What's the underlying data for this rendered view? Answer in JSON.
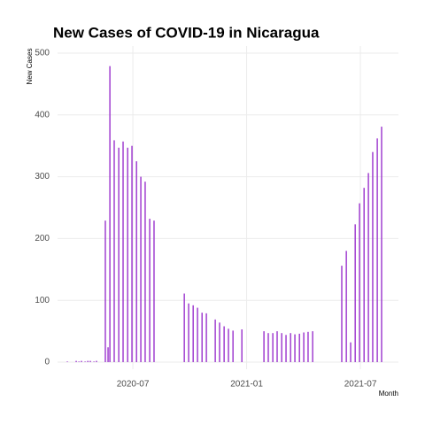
{
  "chart_data": {
    "type": "bar",
    "title": "New Cases of COVID-19 in Nicaragua",
    "x_label": "Month",
    "y_label": "New Cases",
    "x": [
      2020.212,
      2020.251,
      2020.263,
      2020.274,
      2020.29,
      2020.302,
      2020.313,
      2020.329,
      2020.34,
      2020.379,
      2020.391,
      2020.399,
      2020.418,
      2020.438,
      2020.457,
      2020.477,
      2020.496,
      2020.516,
      2020.535,
      2020.554,
      2020.574,
      2020.593,
      2020.726,
      2020.745,
      2020.765,
      2020.784,
      2020.804,
      2020.823,
      2020.862,
      2020.881,
      2020.901,
      2020.92,
      2020.94,
      2020.979,
      2021.076,
      2021.095,
      2021.115,
      2021.134,
      2021.154,
      2021.173,
      2021.193,
      2021.212,
      2021.232,
      2021.251,
      2021.27,
      2021.29,
      2021.418,
      2021.438,
      2021.457,
      2021.477,
      2021.496,
      2021.516,
      2021.535,
      2021.554,
      2021.574,
      2021.593
    ],
    "values": [
      1,
      2,
      1,
      2,
      1,
      2,
      2,
      1,
      2,
      229,
      24,
      479,
      359,
      347,
      357,
      347,
      350,
      325,
      300,
      292,
      232,
      229,
      111,
      95,
      92,
      88,
      80,
      79,
      69,
      64,
      58,
      54,
      51,
      53,
      50,
      47,
      47,
      50,
      47,
      44,
      47,
      45,
      46,
      48,
      49,
      50,
      156,
      180,
      32,
      223,
      257,
      282,
      306,
      340,
      362,
      381
    ],
    "color": "#9a32cd",
    "xlim": [
      2020.169,
      2021.667
    ],
    "xticks": [
      {
        "value": 2020.5,
        "label": "2020-07"
      },
      {
        "value": 2021.0,
        "label": "2021-01"
      },
      {
        "value": 2021.5,
        "label": "2021-07"
      }
    ],
    "ylim": [
      0,
      500
    ],
    "yticks": [
      0,
      100,
      200,
      300,
      400,
      500
    ],
    "grid": true
  }
}
